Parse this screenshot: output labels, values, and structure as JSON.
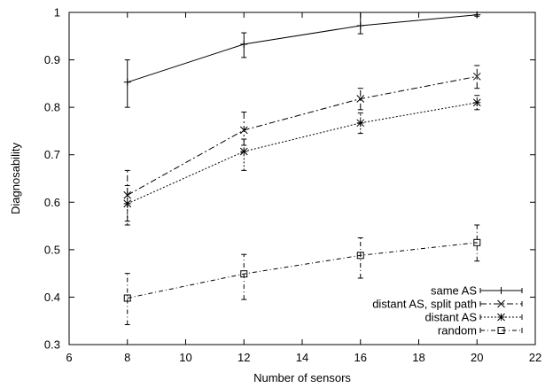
{
  "chart_data": {
    "type": "line",
    "title": "",
    "xlabel": "Number of sensors",
    "ylabel": "Diagnosability",
    "xlim": [
      6,
      22
    ],
    "ylim": [
      0.3,
      1.0
    ],
    "xticks": [
      6,
      8,
      10,
      12,
      14,
      16,
      18,
      20,
      22
    ],
    "yticks": [
      0.3,
      0.4,
      0.5,
      0.6,
      0.7,
      0.8,
      0.9,
      1.0
    ],
    "xtick_labels": [
      "6",
      "8",
      "10",
      "12",
      "14",
      "16",
      "18",
      "20",
      "22"
    ],
    "ytick_labels": [
      "0.3",
      "0.4",
      "0.5",
      "0.6",
      "0.7",
      "0.8",
      "0.9",
      "1"
    ],
    "grid": false,
    "legend_position": "bottom-right",
    "x": [
      8,
      12,
      16,
      20
    ],
    "series": [
      {
        "name": "same AS",
        "marker": "plus",
        "dash": "solid",
        "values": [
          0.853,
          0.933,
          0.972,
          0.995
        ],
        "error_low": [
          0.8,
          0.905,
          0.955,
          0.992
        ],
        "error_high": [
          0.9,
          0.957,
          1.0,
          1.0
        ]
      },
      {
        "name": "distant AS, split path",
        "marker": "cross",
        "dash": "dashdot",
        "values": [
          0.615,
          0.752,
          0.818,
          0.865
        ],
        "error_low": [
          0.56,
          0.72,
          0.795,
          0.84
        ],
        "error_high": [
          0.667,
          0.79,
          0.84,
          0.888
        ]
      },
      {
        "name": "distant AS",
        "marker": "star",
        "dash": "dotted",
        "values": [
          0.597,
          0.707,
          0.767,
          0.81
        ],
        "error_low": [
          0.552,
          0.667,
          0.745,
          0.795
        ],
        "error_high": [
          0.635,
          0.733,
          0.788,
          0.825
        ]
      },
      {
        "name": "random",
        "marker": "square",
        "dash": "dashdot2",
        "values": [
          0.398,
          0.449,
          0.488,
          0.515
        ],
        "error_low": [
          0.342,
          0.395,
          0.44,
          0.476
        ],
        "error_high": [
          0.45,
          0.49,
          0.525,
          0.552
        ]
      }
    ]
  }
}
